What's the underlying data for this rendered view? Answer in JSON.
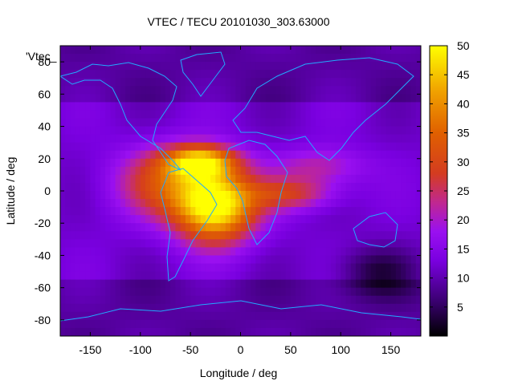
{
  "chart_data": {
    "type": "heatmap",
    "title": "VTEC / TECU 20101030_303.63000",
    "xlabel": "Longitude / deg",
    "ylabel": "Latitude / deg",
    "series_key": "'Vtec_",
    "xlim": [
      -180,
      180
    ],
    "ylim": [
      -90,
      90
    ],
    "x_ticks": [
      -150,
      -100,
      -50,
      0,
      50,
      100,
      150
    ],
    "y_ticks": [
      -80,
      -60,
      -40,
      -20,
      0,
      20,
      40,
      60,
      80
    ],
    "colorbar": {
      "min": 0,
      "max": 50,
      "ticks": [
        5,
        10,
        15,
        20,
        25,
        30,
        35,
        40,
        45,
        50
      ]
    },
    "grid": false,
    "overlay": "coastlines",
    "features": [
      {
        "lon": -25,
        "lat": -10,
        "peak": 50,
        "spread_lon": 40,
        "spread_lat": 22,
        "note": "main equatorial anomaly over South America / South Atlantic"
      },
      {
        "lon": -70,
        "lat": 5,
        "peak": 30,
        "spread_lon": 55,
        "spread_lat": 22
      },
      {
        "lon": -40,
        "lat": 18,
        "peak": 40,
        "spread_lon": 35,
        "spread_lat": 10
      },
      {
        "lon": 50,
        "lat": -2,
        "peak": 26,
        "spread_lon": 45,
        "spread_lat": 10
      },
      {
        "lon": 80,
        "lat": 15,
        "peak": 22,
        "spread_lon": 45,
        "spread_lat": 12
      },
      {
        "lon": 135,
        "lat": -50,
        "peak": 4,
        "spread_lon": 40,
        "spread_lat": 15,
        "note": "minimum (dark) region south of Australia"
      }
    ],
    "background_level": 12
  }
}
